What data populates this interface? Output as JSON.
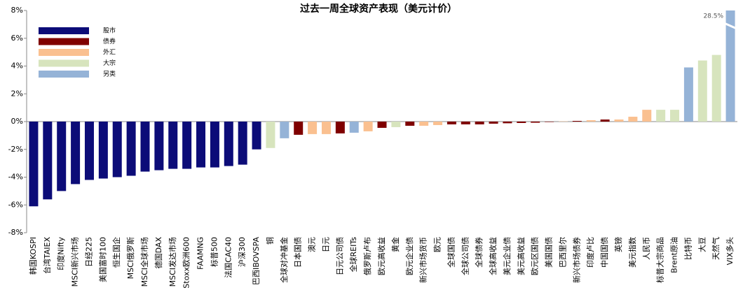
{
  "chart_data": {
    "type": "bar",
    "title": "过去一周全球资产表现（美元计价）",
    "categories": [
      "韩国KOSPI",
      "台湾TAIEX",
      "印度Nifty",
      "MSCI新兴市场",
      "日经225",
      "美国富时100",
      "恒生国企",
      "MSCI俄罗斯",
      "MSCI全球市场",
      "德国DAX",
      "MSCI发达市场",
      "Stoxx欧洲600",
      "FAAMNG",
      "标普500",
      "法国CAC40",
      "沪深300",
      "巴西IBOVSPA",
      "铜",
      "全球对冲基金",
      "日本国债",
      "澳元",
      "日元",
      "日元公司债",
      "全球REITs",
      "俄罗斯卢布",
      "欧元高收益",
      "黄金",
      "欧元企业债",
      "新兴市场货币",
      "欧元",
      "全球国债",
      "全球公司债",
      "全球债券",
      "全球高收益",
      "美元企业债",
      "美元高收益",
      "欧元区国债",
      "美国国债",
      "巴西里尔",
      "新兴市场债券",
      "印度卢比",
      "中国国债",
      "英镑",
      "美元指数",
      "人民币",
      "标普大宗商品",
      "Brent原油",
      "比特币",
      "大豆",
      "天然气",
      "VIX多头"
    ],
    "series": [
      {
        "name": "股市",
        "color": "#0c0c78",
        "values": [
          -6.1,
          -5.6,
          -5.0,
          -4.5,
          -4.2,
          -4.1,
          -4.0,
          -3.9,
          -3.6,
          -3.5,
          -3.4,
          -3.4,
          -3.3,
          -3.3,
          -3.2,
          -3.1,
          -2.0,
          null,
          null,
          null,
          null,
          null,
          null,
          null,
          null,
          null,
          null,
          null,
          null,
          null,
          null,
          null,
          null,
          null,
          null,
          null,
          null,
          null,
          null,
          null,
          null,
          null,
          null,
          null,
          null,
          null,
          null,
          null,
          null,
          null,
          null
        ]
      },
      {
        "name": "债券",
        "color": "#7f0000",
        "values": [
          null,
          null,
          null,
          null,
          null,
          null,
          null,
          null,
          null,
          null,
          null,
          null,
          null,
          null,
          null,
          null,
          null,
          null,
          null,
          -0.95,
          null,
          null,
          -0.85,
          null,
          null,
          -0.45,
          null,
          -0.3,
          null,
          null,
          -0.2,
          -0.2,
          -0.2,
          -0.15,
          -0.12,
          -0.1,
          -0.08,
          -0.03,
          null,
          0.05,
          null,
          0.15,
          null,
          null,
          null,
          null,
          null,
          null,
          null,
          null,
          null
        ]
      },
      {
        "name": "外汇",
        "color": "#fac090",
        "values": [
          null,
          null,
          null,
          null,
          null,
          null,
          null,
          null,
          null,
          null,
          null,
          null,
          null,
          null,
          null,
          null,
          null,
          null,
          null,
          null,
          -0.9,
          -0.9,
          null,
          null,
          -0.7,
          null,
          null,
          null,
          -0.3,
          -0.25,
          null,
          null,
          null,
          null,
          null,
          null,
          null,
          null,
          0.02,
          null,
          0.1,
          null,
          0.15,
          0.35,
          0.85,
          null,
          null,
          null,
          null,
          null,
          null
        ]
      },
      {
        "name": "大宗",
        "color": "#d7e4bd",
        "values": [
          null,
          null,
          null,
          null,
          null,
          null,
          null,
          null,
          null,
          null,
          null,
          null,
          null,
          null,
          null,
          null,
          null,
          -1.9,
          null,
          null,
          null,
          null,
          null,
          null,
          null,
          null,
          -0.4,
          null,
          null,
          null,
          null,
          null,
          null,
          null,
          null,
          null,
          null,
          null,
          null,
          null,
          null,
          null,
          null,
          null,
          null,
          0.85,
          0.85,
          null,
          4.4,
          4.8,
          null
        ]
      },
      {
        "name": "另类",
        "color": "#95b3d7",
        "values": [
          null,
          null,
          null,
          null,
          null,
          null,
          null,
          null,
          null,
          null,
          null,
          null,
          null,
          null,
          null,
          null,
          null,
          null,
          -1.2,
          null,
          null,
          null,
          null,
          -0.8,
          null,
          null,
          null,
          null,
          null,
          null,
          null,
          null,
          null,
          null,
          null,
          null,
          null,
          null,
          null,
          null,
          null,
          null,
          null,
          null,
          null,
          null,
          null,
          3.9,
          null,
          null,
          28.5
        ],
        "value_labels": [
          null,
          null,
          null,
          null,
          null,
          null,
          null,
          null,
          null,
          null,
          null,
          null,
          null,
          null,
          null,
          null,
          null,
          null,
          null,
          null,
          null,
          null,
          null,
          null,
          null,
          null,
          null,
          null,
          null,
          null,
          null,
          null,
          null,
          null,
          null,
          null,
          null,
          null,
          null,
          null,
          null,
          null,
          null,
          null,
          null,
          null,
          null,
          null,
          null,
          null,
          "28.5%"
        ]
      }
    ],
    "ylim": [
      -8,
      8
    ],
    "yticks": [
      {
        "value": -8,
        "label": "-8%"
      },
      {
        "value": -6,
        "label": "-6%"
      },
      {
        "value": -4,
        "label": "-4%"
      },
      {
        "value": -2,
        "label": "-2%"
      },
      {
        "value": 0,
        "label": "0%"
      },
      {
        "value": 2,
        "label": "2%"
      },
      {
        "value": 4,
        "label": "4%"
      },
      {
        "value": 6,
        "label": "6%"
      },
      {
        "value": 8,
        "label": "8%"
      }
    ],
    "legend": "top-left",
    "grid": false
  }
}
